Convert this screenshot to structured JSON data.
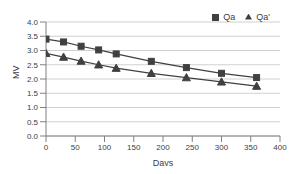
{
  "chart_data": {
    "type": "line",
    "x_label": "Days",
    "y_label": "MV",
    "x": [
      0,
      30,
      60,
      90,
      120,
      180,
      240,
      300,
      360
    ],
    "series": [
      {
        "name": "Qa",
        "color": "#404040",
        "marker": "square",
        "values": [
          3.4,
          3.3,
          3.15,
          3.02,
          2.88,
          2.62,
          2.4,
          2.2,
          2.05
        ]
      },
      {
        "name": "Qa'",
        "color": "#404040",
        "marker": "triangle",
        "values": [
          2.9,
          2.77,
          2.63,
          2.5,
          2.38,
          2.2,
          2.05,
          1.9,
          1.75
        ]
      }
    ],
    "xlim": [
      0,
      400
    ],
    "xticks": [
      0,
      50,
      100,
      150,
      200,
      250,
      300,
      350,
      400
    ],
    "ylim": [
      0,
      4
    ],
    "yticks": [
      {
        "value": 0,
        "label": "0.0"
      },
      {
        "value": 0.5,
        "label": "0.5"
      },
      {
        "value": 1,
        "label": "1.0"
      },
      {
        "value": 1.5,
        "label": "1.5"
      },
      {
        "value": 2,
        "label": "2.0"
      },
      {
        "value": 2.5,
        "label": "2.5"
      },
      {
        "value": 3,
        "label": "3.0"
      },
      {
        "value": 3.5,
        "label": "3.5"
      },
      {
        "value": 4,
        "label": "4.0"
      }
    ],
    "grid": true,
    "legend": "top-right"
  }
}
